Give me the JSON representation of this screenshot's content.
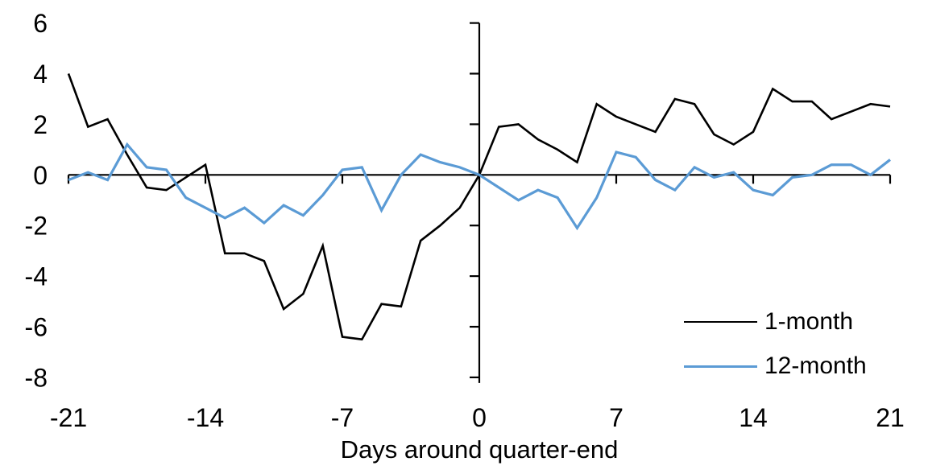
{
  "chart_data": {
    "type": "line",
    "title": "",
    "xlabel": "Days around quarter-end",
    "ylabel": "",
    "xlim": [
      -21,
      21
    ],
    "ylim": [
      -8,
      6
    ],
    "grid": "off",
    "legend_position": "lower right",
    "axis_color": "#000000",
    "x_ticks": [
      -21,
      -14,
      -7,
      0,
      7,
      14,
      21
    ],
    "x_tick_labels": [
      "-21",
      "-14",
      "-7",
      "0",
      "7",
      "14",
      "21"
    ],
    "y_ticks": [
      6,
      4,
      2,
      0,
      -2,
      -4,
      -6,
      -8
    ],
    "y_tick_labels": [
      "6",
      "4",
      "2",
      "0",
      "-2",
      "-4",
      "-6",
      "-8"
    ],
    "x": [
      -21,
      -20,
      -19,
      -18,
      -17,
      -16,
      -15,
      -14,
      -13,
      -12,
      -11,
      -10,
      -9,
      -8,
      -7,
      -6,
      -5,
      -4,
      -3,
      -2,
      -1,
      0,
      1,
      2,
      3,
      4,
      5,
      6,
      7,
      8,
      9,
      10,
      11,
      12,
      13,
      14,
      15,
      16,
      17,
      18,
      19,
      20,
      21
    ],
    "series": [
      {
        "name": "1-month",
        "color": "#000000",
        "stroke_width": 2.6,
        "values": [
          4.0,
          1.9,
          2.2,
          0.8,
          -0.5,
          -0.6,
          -0.1,
          0.4,
          -3.1,
          -3.1,
          -3.4,
          -5.3,
          -4.7,
          -2.8,
          -6.4,
          -6.5,
          -5.1,
          -5.2,
          -2.6,
          -2.0,
          -1.3,
          0.0,
          1.9,
          2.0,
          1.4,
          1.0,
          0.5,
          2.8,
          2.3,
          2.0,
          1.7,
          3.0,
          2.8,
          1.6,
          1.2,
          1.7,
          3.4,
          2.9,
          2.9,
          2.2,
          2.5,
          2.8,
          2.7
        ]
      },
      {
        "name": "12-month",
        "color": "#5B9BD5",
        "stroke_width": 3.2,
        "values": [
          -0.2,
          0.1,
          -0.2,
          1.2,
          0.3,
          0.2,
          -0.9,
          -1.3,
          -1.7,
          -1.3,
          -1.9,
          -1.2,
          -1.6,
          -0.8,
          0.2,
          0.3,
          -1.4,
          0.0,
          0.8,
          0.5,
          0.3,
          0.0,
          -0.5,
          -1.0,
          -0.6,
          -0.9,
          -2.1,
          -0.9,
          0.9,
          0.7,
          -0.2,
          -0.6,
          0.3,
          -0.1,
          0.1,
          -0.6,
          -0.8,
          -0.1,
          0.0,
          0.4,
          0.4,
          0.0,
          0.6
        ]
      }
    ]
  }
}
